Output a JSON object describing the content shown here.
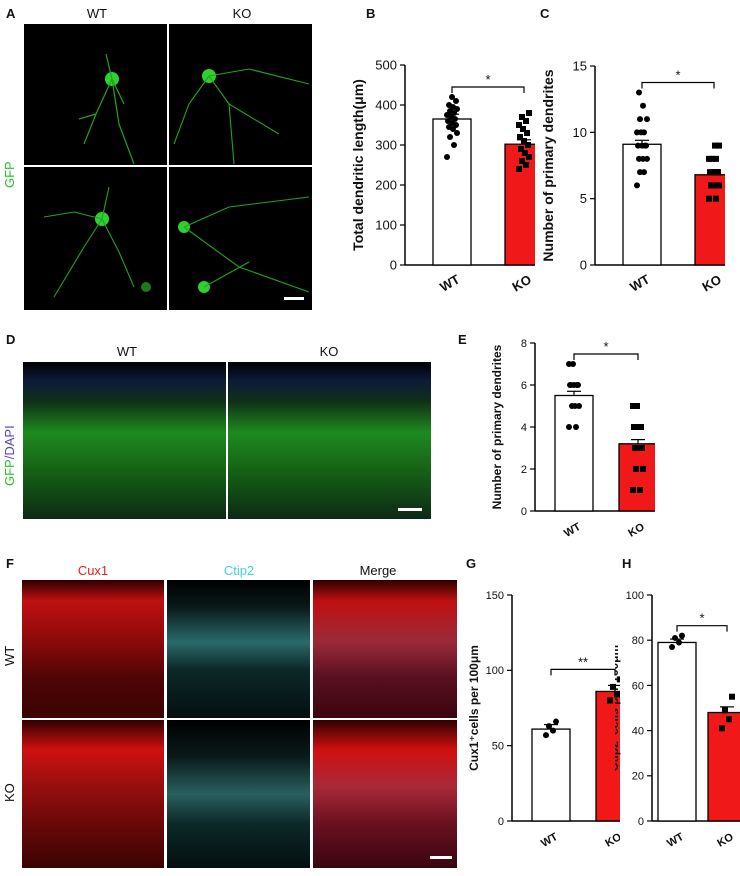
{
  "panels": {
    "A": {
      "label": "A",
      "col_wt": "WT",
      "col_ko": "KO",
      "row_label": "GFP"
    },
    "B": {
      "label": "B"
    },
    "C": {
      "label": "C"
    },
    "D": {
      "label": "D",
      "col_wt": "WT",
      "col_ko": "KO",
      "row_label_gfp": "GFP",
      "row_label_dapi": "/DAPI"
    },
    "E": {
      "label": "E"
    },
    "F": {
      "label": "F",
      "col1": "Cux1",
      "col2": "Ctip2",
      "col3": "Merge",
      "row_wt": "WT",
      "row_ko": "KO"
    },
    "G": {
      "label": "G"
    },
    "H": {
      "label": "H"
    }
  },
  "colors": {
    "gfp": "#22c322",
    "dapi": "#5b3fd6",
    "cux1": "#e82020",
    "ctip2": "#3fd4d4",
    "ko_bar": "#f01818"
  },
  "chart_data": [
    {
      "id": "B",
      "type": "bar",
      "categories": [
        "WT",
        "KO"
      ],
      "values": [
        365,
        302
      ],
      "errors": [
        12,
        11
      ],
      "ylabel": "Total dendritic length(μm)",
      "ylim": [
        0,
        500
      ],
      "yticks": [
        0,
        100,
        200,
        300,
        400,
        500
      ],
      "sig": "*",
      "points": [
        [
          270,
          300,
          320,
          330,
          340,
          345,
          350,
          355,
          360,
          365,
          370,
          375,
          380,
          385,
          390,
          395,
          400,
          410,
          420
        ],
        [
          240,
          250,
          260,
          270,
          280,
          290,
          300,
          310,
          320,
          330,
          340,
          350,
          360,
          370,
          380
        ]
      ]
    },
    {
      "id": "C",
      "type": "bar",
      "categories": [
        "WT",
        "KO"
      ],
      "values": [
        9.1,
        6.8
      ],
      "errors": [
        0.3,
        0.2
      ],
      "ylabel": "Number of primary dendrites",
      "ylim": [
        0,
        15
      ],
      "yticks": [
        0,
        5,
        10,
        15
      ],
      "sig": "*",
      "points": [
        [
          6,
          7,
          7,
          8,
          8,
          8,
          9,
          9,
          9,
          9,
          10,
          10,
          10,
          11,
          11,
          12,
          13
        ],
        [
          5,
          5,
          6,
          6,
          6,
          6,
          7,
          7,
          7,
          7,
          7,
          8,
          8,
          8,
          9,
          9
        ]
      ]
    },
    {
      "id": "E",
      "type": "bar",
      "categories": [
        "WT",
        "KO"
      ],
      "values": [
        5.5,
        3.2
      ],
      "errors": [
        0.2,
        0.2
      ],
      "ylabel": "Number of primary dendrites",
      "ylim": [
        0,
        8
      ],
      "yticks": [
        0,
        2,
        4,
        6,
        8
      ],
      "sig": "*",
      "points": [
        [
          4,
          4,
          5,
          5,
          5,
          6,
          6,
          6,
          6,
          6,
          7,
          7
        ],
        [
          1,
          1,
          2,
          2,
          3,
          3,
          3,
          4,
          4,
          4,
          5,
          5
        ]
      ]
    },
    {
      "id": "G",
      "type": "bar",
      "categories": [
        "WT",
        "KO"
      ],
      "values": [
        61,
        86
      ],
      "errors": [
        3,
        4
      ],
      "ylabel": "Cux1⁺cells per 100μm",
      "ylim": [
        0,
        150
      ],
      "yticks": [
        0,
        50,
        100,
        150
      ],
      "sig": "**",
      "points": [
        [
          57,
          60,
          63,
          66
        ],
        [
          80,
          84,
          89,
          94
        ]
      ]
    },
    {
      "id": "H",
      "type": "bar",
      "categories": [
        "WT",
        "KO"
      ],
      "values": [
        79,
        48
      ],
      "errors": [
        1.5,
        2.5
      ],
      "ylabel": "Ctip2⁺cells per 100μm",
      "ylim": [
        0,
        100
      ],
      "yticks": [
        0,
        20,
        40,
        60,
        80,
        100
      ],
      "sig": "*",
      "points": [
        [
          77,
          79,
          81,
          82
        ],
        [
          41,
          45,
          49,
          55
        ]
      ]
    }
  ]
}
